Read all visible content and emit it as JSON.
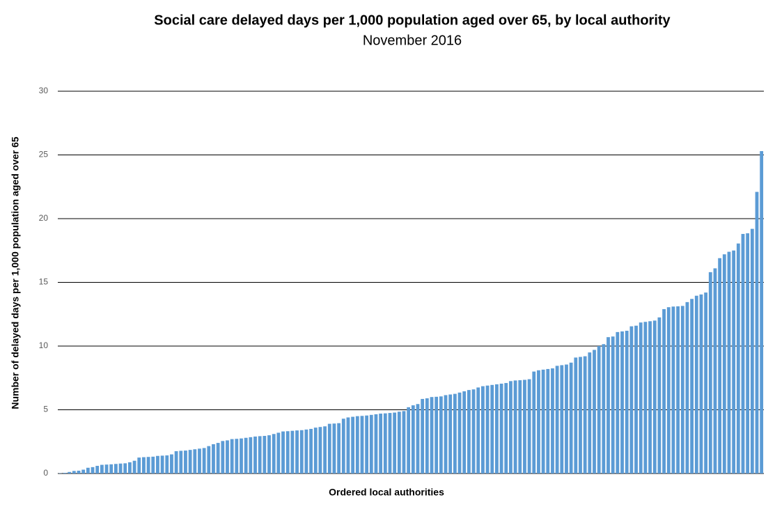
{
  "chart_data": {
    "type": "bar",
    "title": "Social care delayed days per 1,000 population aged over 65, by local authority",
    "subtitle": "November 2016",
    "x_label": "Ordered local authorities",
    "y_label": "Number of delayed days per 1,000 population aged over 65",
    "color": "#5b9bd5",
    "grid": true,
    "ylim": [
      0,
      30
    ],
    "yticks": [
      0,
      5,
      10,
      15,
      20,
      25,
      30
    ],
    "categories": [
      null,
      null,
      null,
      null,
      null,
      null,
      null,
      null,
      null,
      null,
      null,
      null,
      null,
      null,
      null,
      null,
      null,
      null,
      null,
      null,
      null,
      null,
      null,
      null,
      null,
      null,
      null,
      null,
      null,
      null,
      null,
      null,
      null,
      null,
      null,
      null,
      null,
      null,
      null,
      null,
      null,
      null,
      null,
      null,
      null,
      null,
      null,
      null,
      null,
      null,
      null,
      null,
      null,
      null,
      null,
      null,
      null,
      null,
      null,
      null,
      null,
      null,
      null,
      null,
      null,
      null,
      null,
      null,
      null,
      null,
      null,
      null,
      null,
      null,
      null,
      null,
      null,
      null,
      null,
      null,
      null,
      null,
      null,
      null,
      null,
      null,
      null,
      null,
      null,
      null,
      null,
      null,
      null,
      null,
      null,
      null,
      null,
      null,
      null,
      null,
      null,
      null,
      null,
      null,
      null,
      null,
      null,
      null,
      null,
      null,
      null,
      null,
      null,
      null,
      null,
      null,
      null,
      null,
      null,
      null,
      null,
      null,
      null,
      null,
      null,
      null,
      null,
      null,
      null,
      null,
      null,
      null,
      null,
      null,
      null,
      null,
      null,
      null,
      null,
      null,
      null,
      null,
      null,
      null,
      null,
      null,
      null,
      null,
      null,
      null,
      null,
      null
    ],
    "values": [
      0.02,
      0.05,
      0.12,
      0.2,
      0.22,
      0.3,
      0.45,
      0.5,
      0.6,
      0.68,
      0.7,
      0.72,
      0.75,
      0.78,
      0.8,
      0.88,
      1.0,
      1.25,
      1.28,
      1.3,
      1.32,
      1.38,
      1.4,
      1.42,
      1.5,
      1.75,
      1.78,
      1.8,
      1.85,
      1.9,
      1.95,
      2.0,
      2.15,
      2.3,
      2.4,
      2.55,
      2.6,
      2.7,
      2.72,
      2.75,
      2.8,
      2.85,
      2.9,
      2.93,
      2.95,
      3.0,
      3.1,
      3.2,
      3.3,
      3.32,
      3.35,
      3.38,
      3.4,
      3.45,
      3.5,
      3.6,
      3.65,
      3.7,
      3.9,
      3.92,
      3.95,
      4.3,
      4.4,
      4.45,
      4.5,
      4.52,
      4.55,
      4.6,
      4.65,
      4.7,
      4.72,
      4.75,
      4.78,
      4.85,
      4.9,
      5.2,
      5.35,
      5.45,
      5.85,
      5.9,
      6.0,
      6.02,
      6.05,
      6.15,
      6.2,
      6.25,
      6.35,
      6.45,
      6.55,
      6.6,
      6.75,
      6.85,
      6.9,
      6.95,
      7.0,
      7.05,
      7.1,
      7.25,
      7.3,
      7.32,
      7.35,
      7.4,
      8.0,
      8.1,
      8.15,
      8.2,
      8.25,
      8.45,
      8.5,
      8.55,
      8.7,
      9.1,
      9.15,
      9.2,
      9.5,
      9.7,
      10.0,
      10.15,
      10.7,
      10.75,
      11.1,
      11.15,
      11.2,
      11.55,
      11.6,
      11.85,
      11.9,
      11.95,
      12.0,
      12.25,
      12.9,
      13.05,
      13.1,
      13.12,
      13.15,
      13.45,
      13.7,
      13.95,
      14.05,
      14.2,
      15.8,
      16.1,
      16.9,
      17.2,
      17.4,
      17.5,
      18.05,
      18.8,
      18.85,
      19.2,
      22.1,
      25.3
    ]
  }
}
